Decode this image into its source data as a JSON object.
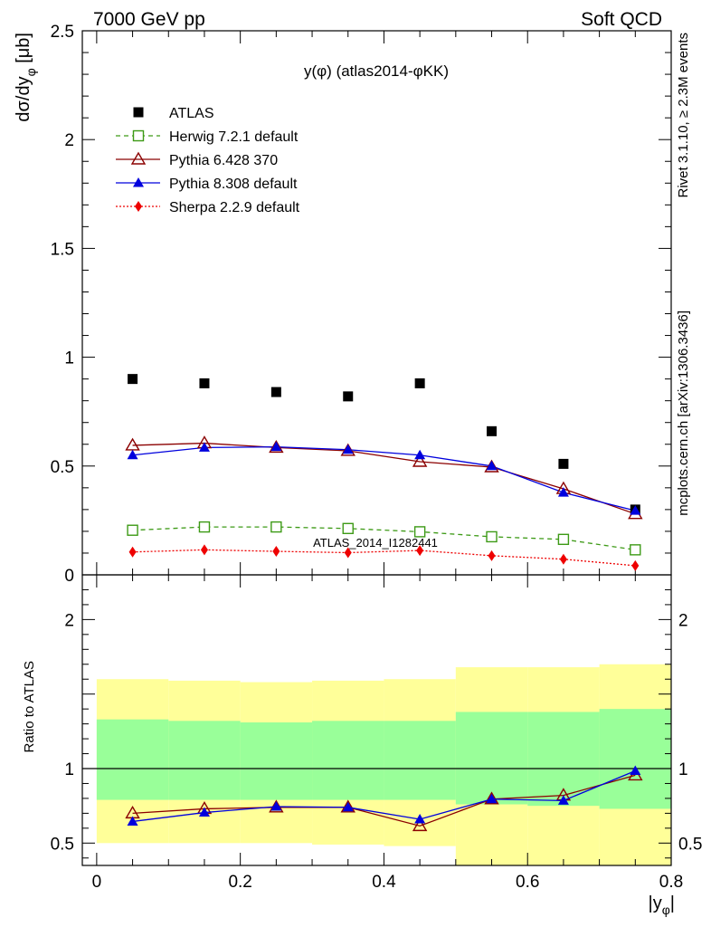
{
  "header": {
    "left": "7000 GeV pp",
    "right": "Soft QCD"
  },
  "side_labels": {
    "rivet": "Rivet 3.1.10, ≥ 2.3M events",
    "mcplots": "mcplots.cern.ch [arXiv:1306.3436]"
  },
  "chart_data": {
    "type": "scatter",
    "title": "y(φ) (atlas2014-φKK)",
    "watermark": "ATLAS_2014_I1282441",
    "xlabel_main": "|y",
    "xlabel_sub": "φ",
    "xlabel_tail": "|",
    "ylabel_main": "dσ/dy",
    "ylabel_sub": "φ",
    "ylabel_tail": " [μb]",
    "ratio_ylabel": "Ratio to ATLAS",
    "xlim": [
      -0.02,
      0.8
    ],
    "ylim": [
      0,
      2.5
    ],
    "ratio_ylim": [
      0.35,
      2.3
    ],
    "x_ticks": [
      "0",
      "0.2",
      "0.4",
      "0.6",
      "0.8"
    ],
    "y_ticks": [
      "0",
      "0.5",
      "1",
      "1.5",
      "2",
      "2.5"
    ],
    "ratio_ticks": [
      "0.5",
      "1",
      "2"
    ],
    "x": [
      0.05,
      0.15,
      0.25,
      0.35,
      0.45,
      0.55,
      0.65,
      0.75
    ],
    "bin_edges": [
      0.0,
      0.1,
      0.2,
      0.3,
      0.4,
      0.5,
      0.6,
      0.7,
      0.8
    ],
    "series": [
      {
        "name": "ATLAS",
        "color": "#000000",
        "marker": "square-filled",
        "line": "none",
        "values": [
          0.9,
          0.88,
          0.84,
          0.82,
          0.88,
          0.66,
          0.51,
          0.3
        ]
      },
      {
        "name": "Herwig 7.2.1 default",
        "color": "#3d9a16",
        "marker": "square-open",
        "line": "dashed",
        "values": [
          0.205,
          0.22,
          0.22,
          0.213,
          0.198,
          0.175,
          0.163,
          0.115
        ],
        "ratio": null
      },
      {
        "name": "Pythia 6.428 370",
        "color": "#8b0000",
        "marker": "triangle-open",
        "line": "solid",
        "values": [
          0.595,
          0.605,
          0.585,
          0.57,
          0.52,
          0.495,
          0.395,
          0.28
        ],
        "ratio": [
          0.7,
          0.73,
          0.74,
          0.74,
          0.615,
          0.795,
          0.82,
          0.955
        ]
      },
      {
        "name": "Pythia 8.308 default",
        "color": "#0000dd",
        "marker": "triangle-filled",
        "line": "solid",
        "values": [
          0.55,
          0.585,
          0.588,
          0.575,
          0.55,
          0.5,
          0.378,
          0.295
        ],
        "ratio": [
          0.645,
          0.705,
          0.745,
          0.74,
          0.66,
          0.795,
          0.785,
          0.985
        ]
      },
      {
        "name": "Sherpa 2.2.9 default",
        "color": "#ee0000",
        "marker": "diamond-filled",
        "line": "dotted",
        "values": [
          0.105,
          0.115,
          0.108,
          0.102,
          0.112,
          0.088,
          0.072,
          0.042
        ],
        "ratio": null
      }
    ],
    "bands": {
      "yellow": [
        [
          0.5,
          1.6
        ],
        [
          0.5,
          1.59
        ],
        [
          0.5,
          1.58
        ],
        [
          0.49,
          1.59
        ],
        [
          0.48,
          1.6
        ],
        [
          0.35,
          1.68
        ],
        [
          0.35,
          1.68
        ],
        [
          0.35,
          1.7
        ]
      ],
      "green": [
        [
          0.79,
          1.33
        ],
        [
          0.79,
          1.32
        ],
        [
          0.79,
          1.31
        ],
        [
          0.79,
          1.32
        ],
        [
          0.79,
          1.32
        ],
        [
          0.76,
          1.38
        ],
        [
          0.75,
          1.38
        ],
        [
          0.73,
          1.4
        ]
      ],
      "yellow_color": "#ffff99",
      "green_color": "#99ff99"
    }
  }
}
